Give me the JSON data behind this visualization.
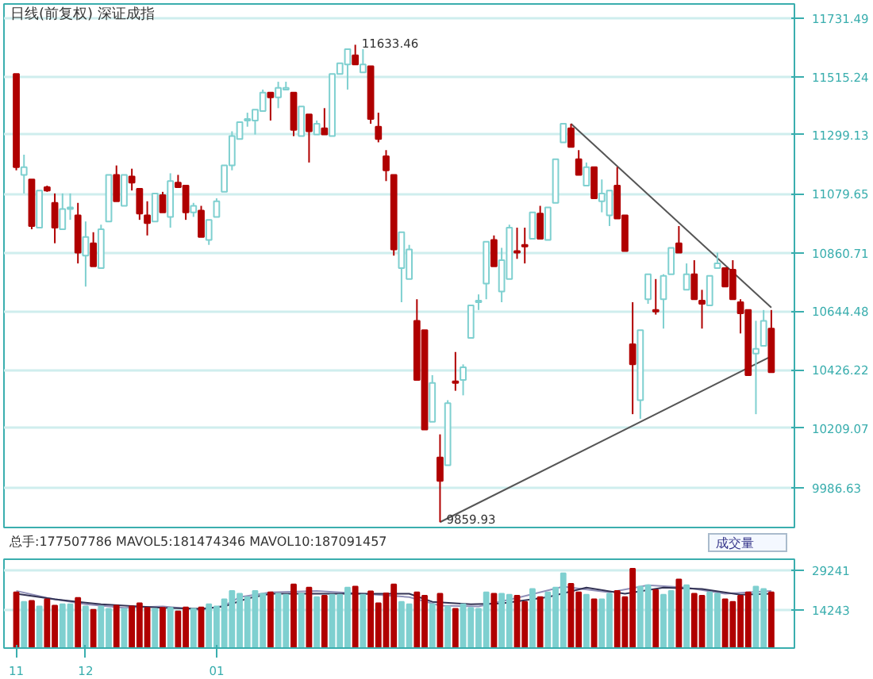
{
  "chart_data": [
    {
      "type": "candlestick",
      "title": "日线(前复权) 深证成指",
      "categories": [
        "11",
        null,
        null,
        null,
        null,
        null,
        null,
        null,
        null,
        "12",
        null,
        null,
        null,
        null,
        null,
        null,
        null,
        null,
        null,
        null,
        null,
        null,
        null,
        null,
        null,
        null,
        "01",
        null,
        null,
        null,
        null,
        null,
        null,
        null,
        null,
        null,
        null,
        null,
        null,
        null,
        null,
        null,
        null,
        null,
        null,
        null,
        null,
        null,
        null,
        null,
        null,
        null,
        null,
        null,
        null,
        null,
        null,
        null,
        null,
        null,
        null,
        null,
        null,
        null,
        null,
        null,
        null,
        null,
        null,
        null,
        null,
        null,
        null,
        null,
        null,
        null,
        null,
        null,
        null,
        null,
        null,
        null,
        null,
        null,
        null,
        null,
        null,
        null,
        null,
        null,
        null,
        null,
        null,
        null,
        null,
        null,
        null,
        null,
        null
      ],
      "ohlc": [
        [
          11525,
          11525,
          11167,
          11179
        ],
        [
          11150,
          11225,
          11081,
          11179
        ],
        [
          11133,
          11133,
          10948,
          10960
        ],
        [
          10954,
          11092,
          10954,
          11092
        ],
        [
          11104,
          11110,
          11087,
          11092
        ],
        [
          11046,
          11081,
          10896,
          10954
        ],
        [
          10948,
          11081,
          10948,
          11023
        ],
        [
          11023,
          11081,
          10983,
          11029
        ],
        [
          11000,
          11046,
          10821,
          10861
        ],
        [
          10850,
          10977,
          10735,
          10919
        ],
        [
          10896,
          10937,
          10810,
          10810
        ],
        [
          10804,
          10965,
          10804,
          10948
        ],
        [
          10977,
          11150,
          10977,
          11150
        ],
        [
          11150,
          11185,
          11052,
          11052
        ],
        [
          11035,
          11150,
          11035,
          11150
        ],
        [
          11144,
          11173,
          11092,
          11121
        ],
        [
          11098,
          11098,
          10983,
          11006
        ],
        [
          11000,
          11052,
          10925,
          10971
        ],
        [
          10977,
          11081,
          10977,
          11081
        ],
        [
          11075,
          11087,
          11011,
          11011
        ],
        [
          10994,
          11156,
          10954,
          11127
        ],
        [
          11121,
          11150,
          11104,
          11104
        ],
        [
          11110,
          11110,
          10983,
          11011
        ],
        [
          11011,
          11046,
          10994,
          11035
        ],
        [
          11017,
          11035,
          10919,
          10919
        ],
        [
          10908,
          10983,
          10890,
          10983
        ],
        [
          10994,
          11063,
          10994,
          11052
        ],
        [
          11087,
          11185,
          11087,
          11185
        ],
        [
          11185,
          11312,
          11167,
          11294
        ],
        [
          11283,
          11346,
          11283,
          11346
        ],
        [
          11352,
          11381,
          11329,
          11358
        ],
        [
          11352,
          11392,
          11300,
          11392
        ],
        [
          11387,
          11467,
          11387,
          11456
        ],
        [
          11456,
          11456,
          11352,
          11438
        ],
        [
          11438,
          11496,
          11398,
          11473
        ],
        [
          11467,
          11496,
          11467,
          11473
        ],
        [
          11456,
          11456,
          11294,
          11317
        ],
        [
          11294,
          11404,
          11294,
          11404
        ],
        [
          11375,
          11375,
          11196,
          11312
        ],
        [
          11300,
          11352,
          11300,
          11340
        ],
        [
          11323,
          11398,
          11300,
          11300
        ],
        [
          11294,
          11525,
          11294,
          11525
        ],
        [
          11525,
          11565,
          11525,
          11565
        ],
        [
          11560,
          11617,
          11467,
          11617
        ],
        [
          11594,
          11633.46,
          11560,
          11560
        ],
        [
          11531,
          11617,
          11531,
          11560
        ],
        [
          11554,
          11554,
          11340,
          11358
        ],
        [
          11329,
          11381,
          11271,
          11283
        ],
        [
          11219,
          11242,
          11127,
          11167
        ],
        [
          11150,
          11150,
          10850,
          10873
        ],
        [
          10804,
          10937,
          10677,
          10937
        ],
        [
          10763,
          10890,
          10763,
          10873
        ],
        [
          10608,
          10688,
          10388,
          10388
        ],
        [
          10573,
          10573,
          10204,
          10204
        ],
        [
          10233,
          10406,
          10233,
          10377
        ],
        [
          10100,
          10186,
          9859.93,
          10013
        ],
        [
          10071,
          10313,
          10071,
          10302
        ],
        [
          10383,
          10492,
          10348,
          10377
        ],
        [
          10388,
          10446,
          10331,
          10435
        ],
        [
          10544,
          10665,
          10544,
          10665
        ],
        [
          10677,
          10706,
          10648,
          10683
        ],
        [
          10746,
          10902,
          10688,
          10902
        ],
        [
          10908,
          10925,
          10810,
          10810
        ],
        [
          10717,
          10879,
          10677,
          10833
        ],
        [
          10763,
          10965,
          10763,
          10954
        ],
        [
          10867,
          10954,
          10838,
          10861
        ],
        [
          10890,
          10954,
          10821,
          10884
        ],
        [
          10913,
          11011,
          10913,
          11011
        ],
        [
          11006,
          11035,
          10913,
          10913
        ],
        [
          10908,
          11029,
          10908,
          11029
        ],
        [
          11046,
          11208,
          11046,
          11208
        ],
        [
          11271,
          11340,
          11271,
          11340
        ],
        [
          11323,
          11340,
          11254,
          11254
        ],
        [
          11208,
          11242,
          11150,
          11150
        ],
        [
          11110,
          11196,
          11110,
          11179
        ],
        [
          11179,
          11179,
          11063,
          11063
        ],
        [
          11052,
          11133,
          11011,
          11081
        ],
        [
          11000,
          11092,
          10960,
          11092
        ],
        [
          11110,
          11179,
          10988,
          10988
        ],
        [
          11000,
          11000,
          10867,
          10867
        ],
        [
          10521,
          10677,
          10261,
          10446
        ],
        [
          10313,
          10573,
          10244,
          10573
        ],
        [
          10688,
          10781,
          10671,
          10781
        ],
        [
          10648,
          10763,
          10631,
          10642
        ],
        [
          10688,
          10781,
          10579,
          10775
        ],
        [
          10781,
          10879,
          10781,
          10879
        ],
        [
          10896,
          10960,
          10861,
          10861
        ],
        [
          10723,
          10821,
          10723,
          10781
        ],
        [
          10781,
          10833,
          10688,
          10688
        ],
        [
          10683,
          10723,
          10579,
          10671
        ],
        [
          10665,
          10775,
          10665,
          10775
        ],
        [
          10804,
          10861,
          10804,
          10821
        ],
        [
          10804,
          10804,
          10735,
          10735
        ],
        [
          10798,
          10833,
          10688,
          10688
        ],
        [
          10677,
          10688,
          10561,
          10636
        ],
        [
          10648,
          10648,
          10406,
          10406
        ],
        [
          10486,
          10608,
          10261,
          10504
        ],
        [
          10515,
          10648,
          10515,
          10608
        ],
        [
          10579,
          10648,
          10417,
          10417
        ]
      ],
      "colors": [
        "#b00000",
        "#7fd0d0",
        "#b00000",
        "#7fd0d0",
        "#b00000",
        "#b00000",
        "#7fd0d0",
        "#7fd0d0",
        "#b00000",
        "#7fd0d0",
        "#b00000",
        "#7fd0d0",
        "#7fd0d0",
        "#b00000",
        "#7fd0d0",
        "#b00000",
        "#b00000",
        "#b00000",
        "#7fd0d0",
        "#b00000",
        "#7fd0d0",
        "#b00000",
        "#b00000",
        "#7fd0d0",
        "#b00000",
        "#7fd0d0",
        "#7fd0d0",
        "#7fd0d0",
        "#7fd0d0",
        "#7fd0d0",
        "#7fd0d0",
        "#7fd0d0",
        "#7fd0d0",
        "#b00000",
        "#7fd0d0",
        "#7fd0d0",
        "#b00000",
        "#7fd0d0",
        "#b00000",
        "#7fd0d0",
        "#b00000",
        "#7fd0d0",
        "#7fd0d0",
        "#7fd0d0",
        "#b00000",
        "#7fd0d0",
        "#b00000",
        "#b00000",
        "#b00000",
        "#b00000",
        "#7fd0d0",
        "#7fd0d0",
        "#b00000",
        "#b00000",
        "#7fd0d0",
        "#b00000",
        "#7fd0d0",
        "#b00000",
        "#7fd0d0",
        "#7fd0d0",
        "#7fd0d0",
        "#7fd0d0",
        "#b00000",
        "#7fd0d0",
        "#7fd0d0",
        "#b00000",
        "#b00000",
        "#7fd0d0",
        "#b00000",
        "#7fd0d0",
        "#7fd0d0",
        "#7fd0d0",
        "#b00000",
        "#b00000",
        "#7fd0d0",
        "#b00000",
        "#7fd0d0",
        "#7fd0d0",
        "#b00000",
        "#b00000",
        "#b00000",
        "#7fd0d0",
        "#7fd0d0",
        "#b00000",
        "#7fd0d0",
        "#7fd0d0",
        "#b00000",
        "#7fd0d0",
        "#b00000",
        "#b00000",
        "#7fd0d0",
        "#7fd0d0",
        "#b00000",
        "#b00000",
        "#b00000",
        "#b00000",
        "#7fd0d0",
        "#7fd0d0",
        "#b00000"
      ],
      "series": [
        {
          "type": "line",
          "color": "#555555",
          "values": [
            null,
            null,
            null,
            null,
            null,
            null,
            null,
            null,
            null,
            null,
            null,
            null,
            null,
            null,
            null,
            null,
            null,
            null,
            null,
            null,
            null,
            null,
            null,
            null,
            null,
            null,
            null,
            null,
            null,
            null,
            null,
            null,
            null,
            null,
            null,
            null,
            null,
            null,
            null,
            null,
            null,
            null,
            null,
            null,
            null,
            null,
            null,
            null,
            null,
            null,
            null,
            null,
            null,
            null,
            null,
            null,
            null,
            null,
            null,
            null,
            null,
            null,
            null,
            null,
            null,
            null,
            null,
            null,
            null,
            null,
            null,
            null,
            11340,
            null,
            null,
            null,
            null,
            null,
            null,
            null,
            null,
            null,
            null,
            null,
            null,
            null,
            null,
            null,
            null,
            null,
            null,
            null,
            null,
            null,
            null,
            null,
            null,
            null,
            10657
          ]
        },
        {
          "type": "line",
          "color": "#555555",
          "values": [
            null,
            null,
            null,
            null,
            null,
            null,
            null,
            null,
            null,
            null,
            null,
            null,
            null,
            null,
            null,
            null,
            null,
            null,
            null,
            null,
            null,
            null,
            null,
            null,
            null,
            null,
            null,
            null,
            null,
            null,
            null,
            null,
            null,
            null,
            null,
            null,
            null,
            null,
            null,
            null,
            null,
            null,
            null,
            null,
            null,
            null,
            null,
            null,
            null,
            null,
            null,
            null,
            null,
            null,
            null,
            9859.93,
            null,
            null,
            null,
            null,
            null,
            null,
            null,
            null,
            null,
            null,
            null,
            null,
            null,
            null,
            null,
            null,
            null,
            null,
            null,
            null,
            null,
            null,
            null,
            null,
            null,
            null,
            null,
            null,
            null,
            null,
            null,
            null,
            null,
            null,
            null,
            null,
            null,
            null,
            null,
            null,
            null,
            null,
            10476
          ]
        }
      ],
      "ylim": [
        9840,
        11785
      ],
      "yticks": [
        9986.63,
        10209.07,
        10426.22,
        10644.48,
        10860.71,
        11079.65,
        11299.13,
        11515.24,
        11731.49
      ],
      "grid": "y",
      "tick_labels": "y",
      "annotations": [
        "11633.46",
        "9859.93"
      ]
    },
    {
      "type": "bar",
      "title": "总手:177507786 MAVOL5:181474346 MAVOL10:187091457",
      "categories": [
        "11",
        null,
        null,
        null,
        null,
        null,
        null,
        null,
        null,
        "12",
        null,
        null,
        null,
        null,
        null,
        null,
        null,
        null,
        null,
        null,
        null,
        null,
        null,
        null,
        null,
        null,
        "01",
        null,
        null,
        null,
        null,
        null,
        null,
        null,
        null,
        null,
        null,
        null,
        null,
        null,
        null,
        null,
        null,
        null,
        null,
        null,
        null,
        null,
        null,
        null,
        null,
        null,
        null,
        null,
        null,
        null,
        null,
        null,
        null,
        null,
        null,
        null,
        null,
        null,
        null,
        null,
        null,
        null,
        null,
        null,
        null,
        null,
        null,
        null,
        null,
        null,
        null,
        null,
        null,
        null,
        null,
        null,
        null,
        null,
        null,
        null,
        null,
        null,
        null,
        null,
        null,
        null,
        null,
        null,
        null,
        null,
        null,
        null,
        null
      ],
      "values": [
        21050,
        17460,
        17840,
        15700,
        18380,
        16020,
        16550,
        16550,
        18910,
        15700,
        14410,
        15700,
        14790,
        16020,
        14790,
        15700,
        16930,
        15160,
        14790,
        15160,
        15160,
        13880,
        15320,
        14790,
        15320,
        16550,
        15700,
        18380,
        21590,
        20520,
        19230,
        21590,
        20520,
        21050,
        20520,
        20140,
        24050,
        20520,
        22820,
        19230,
        19770,
        20140,
        20140,
        22820,
        23200,
        20140,
        21370,
        16930,
        20680,
        24050,
        17460,
        16550,
        21050,
        19770,
        16550,
        20520,
        15700,
        14790,
        16550,
        15160,
        14790,
        21050,
        20520,
        20520,
        20140,
        19770,
        17460,
        22290,
        19230,
        21050,
        22820,
        28180,
        24270,
        21050,
        20140,
        18380,
        18380,
        20520,
        21590,
        19230,
        29950,
        23200,
        23730,
        21910,
        20140,
        21590,
        25870,
        23730,
        20520,
        19770,
        21050,
        20520,
        18380,
        17460,
        19770,
        21050,
        23200,
        22290,
        21050
      ],
      "colors": [
        "#b00000",
        "#7fd0d0",
        "#b00000",
        "#7fd0d0",
        "#b00000",
        "#b00000",
        "#7fd0d0",
        "#7fd0d0",
        "#b00000",
        "#7fd0d0",
        "#b00000",
        "#7fd0d0",
        "#7fd0d0",
        "#b00000",
        "#7fd0d0",
        "#b00000",
        "#b00000",
        "#b00000",
        "#7fd0d0",
        "#b00000",
        "#7fd0d0",
        "#b00000",
        "#b00000",
        "#7fd0d0",
        "#b00000",
        "#7fd0d0",
        "#7fd0d0",
        "#7fd0d0",
        "#7fd0d0",
        "#7fd0d0",
        "#7fd0d0",
        "#7fd0d0",
        "#7fd0d0",
        "#b00000",
        "#7fd0d0",
        "#7fd0d0",
        "#b00000",
        "#7fd0d0",
        "#b00000",
        "#7fd0d0",
        "#b00000",
        "#7fd0d0",
        "#7fd0d0",
        "#7fd0d0",
        "#b00000",
        "#7fd0d0",
        "#b00000",
        "#b00000",
        "#b00000",
        "#b00000",
        "#7fd0d0",
        "#7fd0d0",
        "#b00000",
        "#b00000",
        "#7fd0d0",
        "#b00000",
        "#7fd0d0",
        "#b00000",
        "#7fd0d0",
        "#7fd0d0",
        "#7fd0d0",
        "#7fd0d0",
        "#b00000",
        "#7fd0d0",
        "#7fd0d0",
        "#b00000",
        "#b00000",
        "#7fd0d0",
        "#b00000",
        "#7fd0d0",
        "#7fd0d0",
        "#7fd0d0",
        "#b00000",
        "#b00000",
        "#7fd0d0",
        "#b00000",
        "#7fd0d0",
        "#7fd0d0",
        "#b00000",
        "#b00000",
        "#b00000",
        "#7fd0d0",
        "#7fd0d0",
        "#b00000",
        "#7fd0d0",
        "#7fd0d0",
        "#b00000",
        "#7fd0d0",
        "#b00000",
        "#b00000",
        "#7fd0d0",
        "#7fd0d0",
        "#b00000",
        "#b00000",
        "#b00000",
        "#b00000",
        "#7fd0d0",
        "#7fd0d0",
        "#b00000"
      ],
      "series": [
        {
          "type": "line",
          "color": "#9090b8",
          "values": [
            21590,
            null,
            null,
            null,
            18910,
            null,
            null,
            null,
            null,
            16550,
            null,
            null,
            null,
            null,
            15160,
            null,
            null,
            null,
            null,
            15700,
            null,
            null,
            null,
            null,
            14410,
            null,
            null,
            16020,
            null,
            19230,
            null,
            null,
            null,
            21050,
            null,
            null,
            null,
            null,
            null,
            21590,
            null,
            null,
            null,
            null,
            null,
            20520,
            null,
            null,
            null,
            null,
            null,
            19230,
            null,
            null,
            null,
            16020,
            null,
            null,
            null,
            null,
            15700,
            null,
            null,
            null,
            null,
            18910,
            null,
            null,
            null,
            null,
            null,
            23200,
            null,
            null,
            null,
            null,
            null,
            21050,
            null,
            null,
            null,
            null,
            23730,
            null,
            null,
            null,
            null,
            22820,
            null,
            null,
            null,
            null,
            20520,
            null,
            null,
            null,
            null,
            null,
            21590
          ]
        },
        {
          "type": "line",
          "color": "#333355",
          "values": [
            20520,
            null,
            null,
            null,
            null,
            18380,
            null,
            null,
            17460,
            null,
            null,
            16550,
            null,
            null,
            null,
            null,
            null,
            null,
            null,
            15160,
            null,
            null,
            null,
            null,
            14790,
            null,
            null,
            15700,
            null,
            null,
            18700,
            null,
            null,
            20520,
            null,
            null,
            null,
            null,
            null,
            null,
            null,
            null,
            null,
            null,
            null,
            20520,
            null,
            null,
            null,
            null,
            null,
            20520,
            null,
            null,
            17460,
            null,
            null,
            null,
            null,
            16550,
            null,
            null,
            null,
            16830,
            null,
            null,
            null,
            null,
            null,
            19230,
            null,
            null,
            null,
            null,
            22820,
            null,
            null,
            null,
            null,
            20520,
            null,
            null,
            null,
            null,
            22820,
            null,
            null,
            null,
            null,
            22290,
            null,
            null,
            null,
            null,
            20140,
            null,
            null,
            null,
            20520
          ]
        }
      ],
      "ylim": [
        0,
        33530
      ],
      "yticks": [
        14243,
        29241
      ],
      "grid": "y",
      "annotations": [
        "成交量"
      ]
    }
  ]
}
